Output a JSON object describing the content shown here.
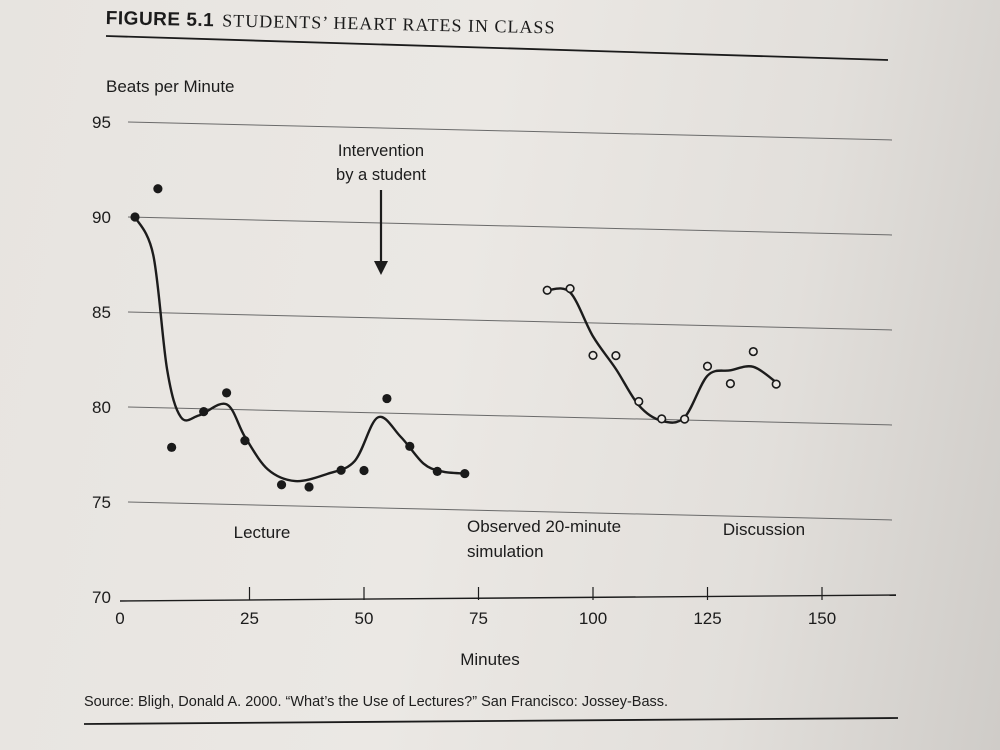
{
  "figure": {
    "label": "FIGURE 5.1",
    "title": "STUDENTS’ HEART RATES IN CLASS",
    "source": "Source: Bligh, Donald A. 2000. “What’s the Use of Lectures?” San Francisco: Jossey-Bass."
  },
  "chart_data": {
    "type": "scatter",
    "title": "STUDENTS’ HEART RATES IN CLASS",
    "ylabel": "Beats per Minute",
    "xlabel": "Minutes",
    "xlim": [
      0,
      150
    ],
    "ylim": [
      70,
      95
    ],
    "yticks": [
      "95",
      "90",
      "85",
      "80",
      "75",
      "70"
    ],
    "xticks": [
      "0",
      "25",
      "50",
      "75",
      "100",
      "125",
      "150"
    ],
    "grid": true,
    "annotations": {
      "intervention": [
        "Intervention",
        "by a student"
      ],
      "intervention_minute": 51,
      "lecture": "Lecture",
      "simulation": [
        "Observed 20-minute",
        "simulation"
      ],
      "discussion": "Discussion"
    },
    "series": [
      {
        "marker": "filled",
        "points": [
          [
            0,
            90
          ],
          [
            5,
            91.5
          ],
          [
            8,
            77.9
          ],
          [
            15,
            79.8
          ],
          [
            20,
            80.8
          ],
          [
            24,
            78.3
          ],
          [
            32,
            76
          ],
          [
            38,
            75.9
          ],
          [
            45,
            76.8
          ],
          [
            50,
            76.8
          ],
          [
            55,
            80.6
          ],
          [
            60,
            78.1
          ],
          [
            66,
            76.8
          ],
          [
            72,
            76.7
          ]
        ],
        "curve": [
          [
            0,
            90
          ],
          [
            4,
            88
          ],
          [
            7,
            82
          ],
          [
            10,
            79.5
          ],
          [
            14,
            79.6
          ],
          [
            20,
            80.2
          ],
          [
            24,
            78.5
          ],
          [
            29,
            76.8
          ],
          [
            35,
            76.2
          ],
          [
            42,
            76.6
          ],
          [
            48,
            77.3
          ],
          [
            53,
            79.6
          ],
          [
            58,
            78.6
          ],
          [
            63,
            77.2
          ],
          [
            67,
            76.8
          ],
          [
            72,
            76.7
          ]
        ]
      },
      {
        "marker": "hollow",
        "points": [
          [
            90,
            86.4
          ],
          [
            95,
            86.5
          ],
          [
            100,
            83
          ],
          [
            105,
            83
          ],
          [
            110,
            80.6
          ],
          [
            115,
            79.7
          ],
          [
            120,
            79.7
          ],
          [
            125,
            82.5
          ],
          [
            130,
            81.6
          ],
          [
            135,
            83.3
          ],
          [
            140,
            81.6
          ]
        ],
        "curve": [
          [
            90,
            86.4
          ],
          [
            95,
            86.3
          ],
          [
            100,
            84
          ],
          [
            105,
            82.3
          ],
          [
            110,
            80.4
          ],
          [
            115,
            79.6
          ],
          [
            120,
            79.8
          ],
          [
            125,
            82
          ],
          [
            130,
            82.3
          ],
          [
            135,
            82.5
          ],
          [
            140,
            81.7
          ]
        ]
      }
    ]
  }
}
